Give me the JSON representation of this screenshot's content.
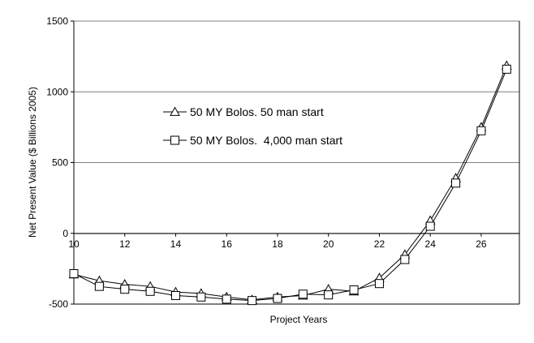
{
  "chart_data": {
    "type": "line",
    "title": "",
    "xlabel": "Project Years",
    "ylabel": "Net Present Value ($ Billions 2005)",
    "xlim": [
      10,
      27.5
    ],
    "ylim": [
      -500,
      1500
    ],
    "xticks": [
      "10",
      "12",
      "14",
      "16",
      "18",
      "20",
      "22",
      "24",
      "26"
    ],
    "yticks": [
      "-500",
      "0",
      "500",
      "1000",
      "1500"
    ],
    "grid": "horizontal",
    "legend_position": "upper-left inside plot",
    "series": [
      {
        "name": "50 MY Bolos. 50 man start",
        "marker": "triangle",
        "x": [
          10,
          11,
          12,
          13,
          14,
          15,
          16,
          17,
          18,
          19,
          20,
          21,
          22,
          23,
          24,
          25,
          26,
          27
        ],
        "values": [
          -290,
          -335,
          -360,
          -375,
          -415,
          -425,
          -450,
          -470,
          -450,
          -440,
          -395,
          -410,
          -315,
          -150,
          90,
          390,
          750,
          1185
        ]
      },
      {
        "name": "50 MY Bolos.  4,000 man start",
        "marker": "square",
        "x": [
          10,
          11,
          12,
          13,
          14,
          15,
          16,
          17,
          18,
          19,
          20,
          21,
          22,
          23,
          24,
          25,
          26,
          27
        ],
        "values": [
          -285,
          -375,
          -395,
          -410,
          -440,
          -450,
          -465,
          -475,
          -460,
          -430,
          -435,
          -400,
          -355,
          -185,
          50,
          355,
          725,
          1160
        ]
      }
    ]
  }
}
